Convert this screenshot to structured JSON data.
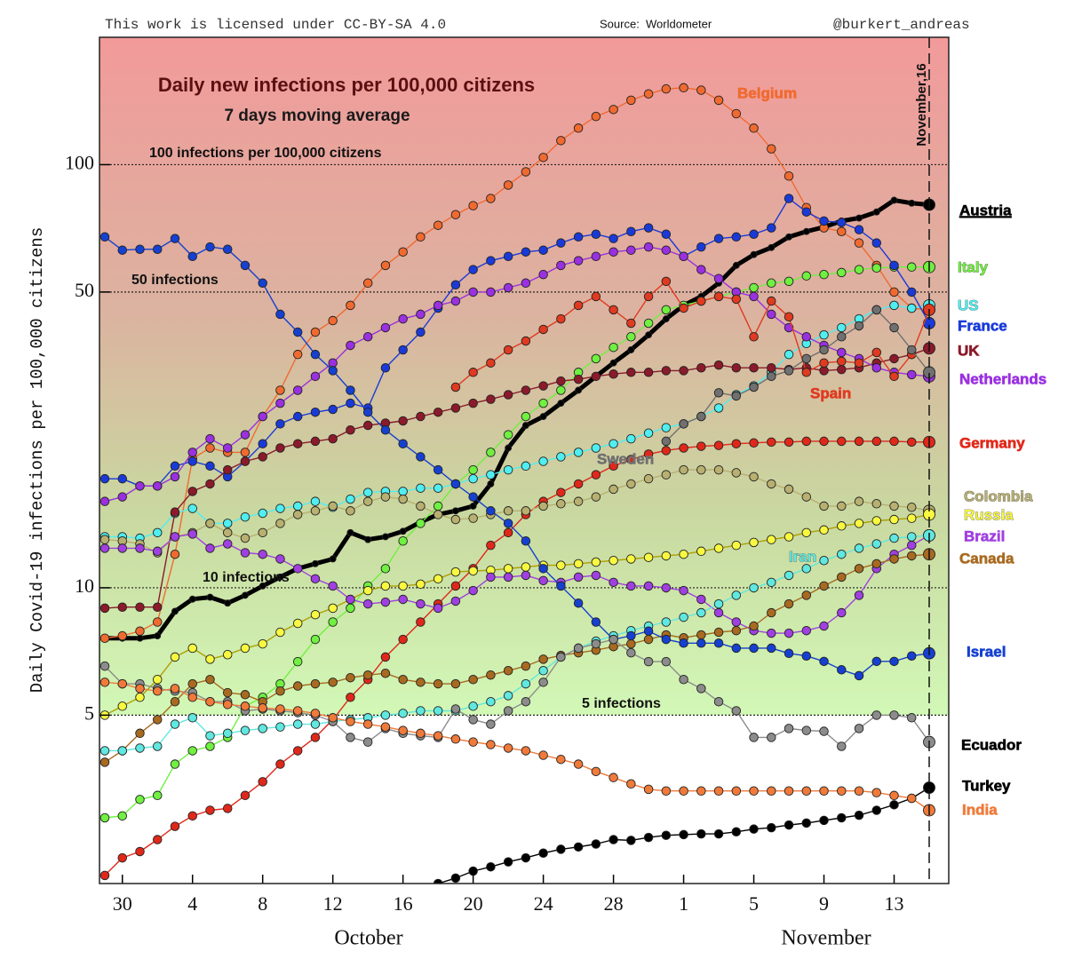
{
  "chart_data": {
    "type": "line",
    "title": "Daily new infections per 100,000 citizens",
    "subtitle": "7 days moving average",
    "license": "This work is licensed under CC-BY-SA 4.0",
    "source": "Source:  Worldometer",
    "author": "@burkert_andreas",
    "y_label": "Daily Covid-19 infections per 100,000 citizens",
    "x_group_labels": [
      "October",
      "November"
    ],
    "end_marker": {
      "label": "November,16"
    },
    "log_y": true,
    "ylim": [
      2,
      200
    ],
    "yticks": [
      5,
      10,
      50,
      100
    ],
    "reference_lines": [
      {
        "value": 100,
        "label": "100 infections per 100,000 citizens"
      },
      {
        "value": 50,
        "label": "50 infections"
      },
      {
        "value": 10,
        "label": "10 infections"
      },
      {
        "value": 5,
        "label": "5 infections"
      }
    ],
    "categories": [
      null,
      "30",
      null,
      null,
      null,
      "4",
      null,
      null,
      null,
      "8",
      null,
      null,
      null,
      "12",
      null,
      null,
      null,
      "16",
      null,
      null,
      null,
      "20",
      null,
      null,
      null,
      "24",
      null,
      null,
      null,
      "28",
      null,
      null,
      null,
      "1",
      null,
      null,
      null,
      "5",
      null,
      null,
      null,
      "9",
      null,
      null,
      null,
      "13",
      null,
      null
    ],
    "series": [
      {
        "name": "Austria",
        "color": "#000000",
        "values": [
          7.6,
          7.6,
          7.6,
          7.7,
          8.8,
          9.4,
          9.5,
          9.2,
          9.6,
          10.1,
          10.6,
          11.1,
          11.4,
          11.7,
          13.5,
          13.0,
          13.2,
          13.6,
          14.3,
          14.9,
          15.2,
          15.6,
          17.6,
          21.4,
          24.2,
          25.4,
          27.3,
          29.3,
          31.6,
          34.0,
          36.5,
          39.6,
          43.2,
          46.5,
          48.8,
          52.5,
          57.8,
          61.3,
          63.7,
          67.5,
          69.5,
          71.2,
          73.6,
          74.8,
          77.3,
          82.4,
          81.1,
          80.4
        ]
      },
      {
        "name": "Belgium",
        "color": "#f06a30",
        "values": [
          7.6,
          7.7,
          7.9,
          8.3,
          12,
          20.2,
          21.4,
          20.9,
          20.9,
          25.4,
          29.3,
          35.6,
          40.2,
          42.8,
          46.5,
          52.5,
          57.8,
          62.2,
          67.5,
          71.9,
          76.2,
          80,
          83.2,
          89.5,
          96.2,
          104,
          114,
          122,
          130,
          135,
          142,
          147,
          151,
          152,
          150,
          142,
          132,
          122,
          109,
          94,
          79.2,
          70.9,
          69.5,
          65.3,
          57.8,
          50,
          45.8,
          45.4
        ]
      },
      {
        "name": "Italy",
        "color": "#70f040",
        "values": [
          2.86,
          2.89,
          3.16,
          3.23,
          3.83,
          4.12,
          4.22,
          4.43,
          5.25,
          5.51,
          5.93,
          6.69,
          7.55,
          8.3,
          8.95,
          10.1,
          11.1,
          12.9,
          14.2,
          15.6,
          17.6,
          19,
          20.9,
          23,
          25.4,
          27.3,
          29.3,
          32.3,
          34.8,
          37,
          39.2,
          42.2,
          45.4,
          46.5,
          47.6,
          48.8,
          50,
          51.2,
          52.5,
          53,
          54.6,
          55,
          55.6,
          56.5,
          57,
          57.3,
          57.3,
          57.3
        ]
      },
      {
        "name": "US",
        "color": "#50eef0",
        "values": [
          13.2,
          13.2,
          13.1,
          13.5,
          15,
          15.4,
          14.2,
          14.2,
          14.7,
          15,
          15.4,
          15.6,
          16,
          15.5,
          16.2,
          16.8,
          16.9,
          16.9,
          17.2,
          17.2,
          17.6,
          18.1,
          18.5,
          19,
          19.4,
          19.9,
          20.4,
          20.9,
          21.4,
          21.9,
          22.5,
          23.2,
          23.9,
          24.4,
          25.4,
          26.6,
          28.6,
          30,
          32.3,
          35.6,
          37.8,
          39.6,
          41.2,
          43.2,
          45.4,
          46.5,
          45.8,
          46.5
        ]
      },
      {
        "name": "France",
        "color": "#1a3ad8",
        "values": [
          18.1,
          18.1,
          17.4,
          17.4,
          19.4,
          19.9,
          19.4,
          18.3,
          19.9,
          21.9,
          24.4,
          25.4,
          26,
          26.4,
          27.3,
          26.6,
          33.1,
          36.5,
          40.2,
          45.8,
          52,
          56.5,
          59.3,
          60.7,
          62.2,
          62.8,
          65.3,
          67.5,
          68.5,
          66.9,
          69.5,
          70.9,
          68.5,
          60.7,
          63.9,
          66.9,
          67.5,
          68.5,
          70.9,
          83.2,
          77.3,
          73.6,
          73,
          70.2,
          65.3,
          57.8,
          50,
          42.2
        ]
      },
      {
        "name": "UK",
        "color": "#8b1a2a",
        "values": [
          8.95,
          9,
          9,
          9,
          15.1,
          16.9,
          17.6,
          19,
          19.9,
          20.4,
          21.4,
          21.9,
          22.2,
          22.5,
          23.6,
          24.2,
          24.5,
          24.8,
          25.4,
          26,
          26.6,
          27.3,
          27.9,
          28.6,
          29.3,
          30,
          30.8,
          31.1,
          31.6,
          32,
          32.3,
          32.3,
          32.6,
          32.6,
          33.1,
          33.6,
          33.1,
          33.1,
          33.1,
          32.8,
          33.1,
          32.6,
          32.8,
          33.1,
          34,
          34.8,
          35.6,
          36.8
        ]
      },
      {
        "name": "Netherlands",
        "color": "#9a30e0",
        "values": [
          16,
          16.4,
          17.4,
          17.4,
          18.3,
          20.9,
          22.5,
          21.4,
          23,
          25.4,
          27.3,
          29.3,
          31.6,
          34,
          37.4,
          39.2,
          41.2,
          43.2,
          44.3,
          46.5,
          47.6,
          50,
          50,
          51.2,
          52.5,
          55,
          57.8,
          59.3,
          60.7,
          62.2,
          62.8,
          63.9,
          62.8,
          60.7,
          56.5,
          53.8,
          50,
          48.8,
          44.3,
          41.2,
          39.2,
          37.4,
          36,
          34.8,
          33.1,
          32.3,
          31.9,
          31.6
        ]
      },
      {
        "name": "Spain",
        "color": "#e03a20",
        "values": [
          null,
          null,
          null,
          null,
          null,
          null,
          null,
          null,
          null,
          null,
          null,
          null,
          null,
          null,
          null,
          null,
          null,
          null,
          null,
          null,
          29.8,
          32.3,
          34,
          36.5,
          38.3,
          40.8,
          43.2,
          46.5,
          48.8,
          45.4,
          42.2,
          48.8,
          53,
          45.8,
          47.6,
          48.8,
          48.1,
          39.2,
          47.6,
          43.7,
          32.3,
          34,
          34.3,
          34,
          36,
          31.6,
          35.6,
          45.4
        ]
      },
      {
        "name": "Germany",
        "color": "#e0281a",
        "values": [
          2.09,
          2.3,
          2.38,
          2.54,
          2.73,
          2.89,
          2.98,
          3.01,
          3.23,
          3.48,
          3.83,
          4.12,
          4.43,
          4.88,
          5.51,
          6.07,
          6.86,
          7.55,
          8.3,
          9.16,
          10.1,
          11.1,
          12.6,
          13.5,
          14.9,
          16,
          16.8,
          17.6,
          18.5,
          19.4,
          20.1,
          20.7,
          21.1,
          21.4,
          21.6,
          21.7,
          21.9,
          22,
          22.1,
          22.1,
          22.2,
          22.2,
          22.2,
          22.2,
          22.2,
          22.2,
          22.1,
          22.1
        ]
      },
      {
        "name": "Sweden",
        "color": "#707070",
        "values": [
          null,
          null,
          null,
          null,
          null,
          null,
          null,
          null,
          null,
          null,
          null,
          null,
          null,
          null,
          null,
          null,
          null,
          null,
          null,
          null,
          null,
          null,
          null,
          null,
          null,
          null,
          null,
          null,
          null,
          null,
          null,
          null,
          22.2,
          24.4,
          25.4,
          28.9,
          28.4,
          29.8,
          31.6,
          32.6,
          34.8,
          36.5,
          39.2,
          41.6,
          45.4,
          41.2,
          36.5,
          32.3
        ]
      },
      {
        "name": "Colombia",
        "color": "#b8b070",
        "values": [
          13,
          12.9,
          12.7,
          12.1,
          13.2,
          13.5,
          14.2,
          13.5,
          13.1,
          13.5,
          14.2,
          14.9,
          15.2,
          15.6,
          15.2,
          16,
          16.4,
          16.2,
          15.6,
          14.9,
          14.5,
          14.6,
          14.9,
          15.2,
          15.2,
          15.6,
          15.8,
          16,
          16.4,
          17.1,
          17.6,
          18.1,
          18.5,
          19,
          19,
          19,
          18.7,
          18.3,
          17.6,
          17.1,
          16.4,
          15.6,
          15.6,
          16,
          15.8,
          15.6,
          15.5,
          15.2
        ]
      },
      {
        "name": "Russia",
        "color": "#f8f840",
        "values": [
          5,
          5.25,
          5.51,
          6.07,
          6.86,
          7.2,
          6.78,
          6.95,
          7.2,
          7.37,
          7.85,
          8.24,
          8.64,
          8.95,
          9.39,
          9.85,
          10.1,
          10.1,
          10.2,
          10.5,
          10.9,
          10.96,
          11,
          11.1,
          11.2,
          11.3,
          11.3,
          11.4,
          11.5,
          11.6,
          11.7,
          11.8,
          11.9,
          12,
          12.2,
          12.4,
          12.6,
          12.8,
          13,
          13.2,
          13.5,
          13.7,
          14,
          14.2,
          14.4,
          14.5,
          14.6,
          14.9
        ]
      },
      {
        "name": "Brazil",
        "color": "#a040e0",
        "values": [
          12.4,
          12.4,
          12.4,
          12.2,
          13.2,
          13.4,
          12.4,
          12.7,
          12.1,
          12,
          11.7,
          11.1,
          10.5,
          10.1,
          9.39,
          9.16,
          9.25,
          9.39,
          9.16,
          8.95,
          9.3,
          9.85,
          10.6,
          10.6,
          10.7,
          10.4,
          10.3,
          10.6,
          10.7,
          10.3,
          10.1,
          10.1,
          10,
          9.85,
          9.39,
          8.73,
          8.3,
          7.92,
          7.81,
          7.81,
          7.92,
          8.12,
          8.73,
          9.6,
          11.1,
          12,
          12.6,
          13.3
        ]
      },
      {
        "name": "Canada",
        "color": "#a86a20",
        "values": [
          3.87,
          4.12,
          4.53,
          4.88,
          5.38,
          5.93,
          6.07,
          5.65,
          5.59,
          5.38,
          5.7,
          5.86,
          5.93,
          5.98,
          6.13,
          6.22,
          6.28,
          6.07,
          5.98,
          5.93,
          5.93,
          6.07,
          6.22,
          6.37,
          6.53,
          6.78,
          6.92,
          7.02,
          7.12,
          7.26,
          7.37,
          7.55,
          7.74,
          7.62,
          7.74,
          7.85,
          7.92,
          8.12,
          8.73,
          9.16,
          9.6,
          10.1,
          10.6,
          11.1,
          11.4,
          11.7,
          11.9,
          12
        ]
      },
      {
        "name": "Iran",
        "color": "#60e8e0",
        "values": [
          4.12,
          4.12,
          4.18,
          4.22,
          4.76,
          4.93,
          4.47,
          4.53,
          4.6,
          4.65,
          4.69,
          4.76,
          4.76,
          4.83,
          4.88,
          4.93,
          5,
          5.05,
          5.12,
          5.12,
          5.12,
          5.25,
          5.38,
          5.56,
          5.93,
          6.37,
          6.86,
          7.2,
          7.48,
          7.7,
          7.92,
          8.12,
          8.3,
          8.52,
          8.73,
          9.16,
          9.6,
          10,
          10.3,
          10.7,
          11.1,
          11.6,
          12,
          12.4,
          12.7,
          13.1,
          13.2,
          13.3
        ]
      },
      {
        "name": "Israel",
        "color": "#1540d0",
        "values": [
          67.5,
          62.8,
          63.1,
          63.1,
          66.9,
          60.7,
          63.9,
          63.1,
          57.8,
          52.5,
          44.3,
          40.2,
          35.6,
          32.6,
          29.3,
          26,
          23.6,
          21.9,
          20.4,
          19,
          17.6,
          16.4,
          15.2,
          14.2,
          12.9,
          11.1,
          10.1,
          9.2,
          8.3,
          7.55,
          7.7,
          7.9,
          7.55,
          7.4,
          7.4,
          7.4,
          7.2,
          7.2,
          7.2,
          7.0,
          6.9,
          6.7,
          6.4,
          6.2,
          6.7,
          6.7,
          6.9,
          7.0
        ]
      },
      {
        "name": "Ecuador",
        "color": "#8c8c8c",
        "values": [
          6.53,
          5.93,
          5.93,
          5.78,
          5.7,
          5.65,
          5.38,
          5.38,
          5.12,
          5.17,
          5.12,
          5.07,
          5,
          4.83,
          4.43,
          4.32,
          4.65,
          4.53,
          4.47,
          4.43,
          5.17,
          4.88,
          4.76,
          5.12,
          5.38,
          5.98,
          6.86,
          7.2,
          7.37,
          7.55,
          7.02,
          6.69,
          6.69,
          6.07,
          5.78,
          5.38,
          5.12,
          4.43,
          4.43,
          4.65,
          4.6,
          4.58,
          4.22,
          4.65,
          5,
          5,
          4.93,
          4.32
        ]
      },
      {
        "name": "Turkey",
        "color": "#000000",
        "values": [
          null,
          null,
          null,
          null,
          null,
          null,
          null,
          null,
          null,
          null,
          null,
          null,
          null,
          null,
          null,
          null,
          null,
          null,
          null,
          2.0,
          2.06,
          2.14,
          2.19,
          2.25,
          2.3,
          2.36,
          2.41,
          2.44,
          2.48,
          2.54,
          2.53,
          2.57,
          2.6,
          2.61,
          2.62,
          2.62,
          2.65,
          2.69,
          2.71,
          2.75,
          2.78,
          2.82,
          2.86,
          2.9,
          2.98,
          3.07,
          3.18,
          3.37
        ]
      },
      {
        "name": "India",
        "color": "#f07a3a",
        "values": [
          5.98,
          5.93,
          5.78,
          5.7,
          5.78,
          5.51,
          5.38,
          5.3,
          5.25,
          5.2,
          5.17,
          5.12,
          5.05,
          4.93,
          4.83,
          4.76,
          4.69,
          4.6,
          4.53,
          4.47,
          4.39,
          4.32,
          4.26,
          4.18,
          4.12,
          4.02,
          3.93,
          3.83,
          3.68,
          3.56,
          3.44,
          3.34,
          3.31,
          3.31,
          3.31,
          3.31,
          3.31,
          3.31,
          3.31,
          3.31,
          3.31,
          3.31,
          3.31,
          3.31,
          3.28,
          3.23,
          3.18,
          2.98
        ]
      }
    ]
  }
}
